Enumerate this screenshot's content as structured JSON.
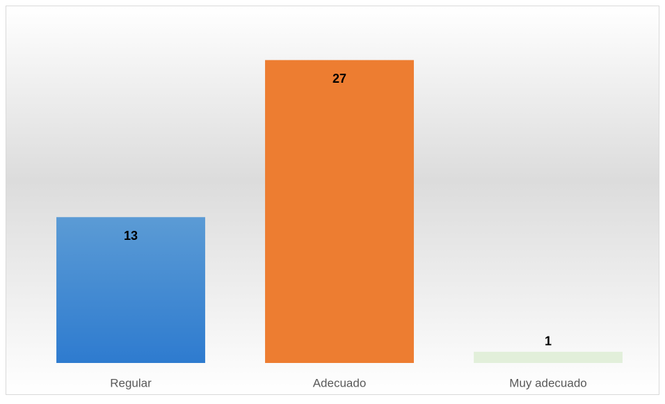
{
  "chart_data": {
    "type": "bar",
    "categories": [
      "Regular",
      "Adecuado",
      "Muy adecuado"
    ],
    "values": [
      13,
      27,
      1
    ],
    "colors": [
      "#4a8fd8",
      "#ed7d31",
      "#e2efda"
    ],
    "ylim": [
      0,
      30
    ]
  }
}
